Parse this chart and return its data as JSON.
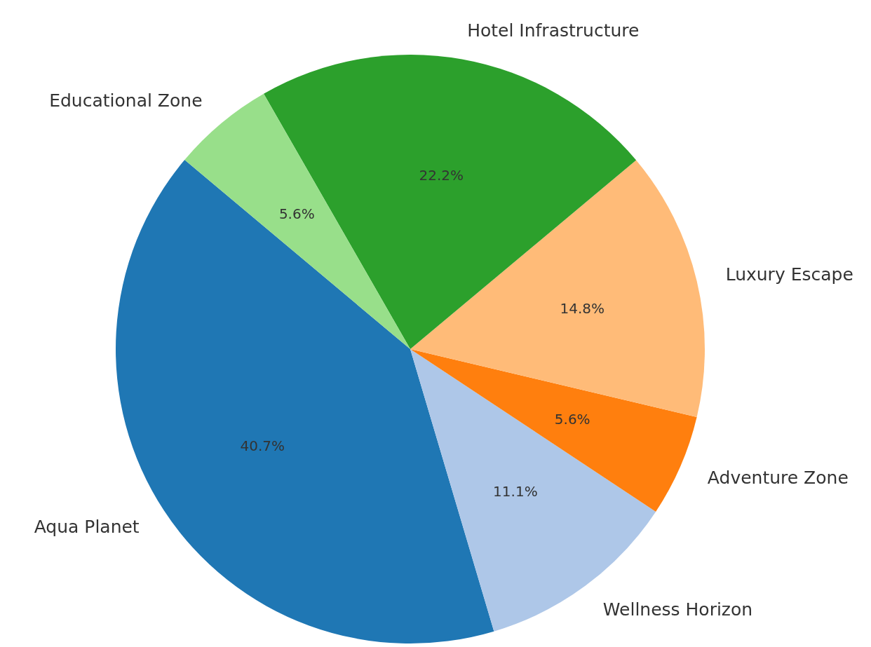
{
  "chart_data": {
    "type": "pie",
    "categories": [
      "Aqua Planet",
      "Wellness Horizon",
      "Adventure Zone",
      "Luxury Escape",
      "Hotel Infrastructure",
      "Educational Zone"
    ],
    "values": [
      40.7,
      11.1,
      5.6,
      14.8,
      22.2,
      5.6
    ],
    "colors": [
      "#1f77b4",
      "#aec7e8",
      "#ff7f0e",
      "#ffbb78",
      "#2ca02c",
      "#98df8a"
    ],
    "value_labels": [
      "40.7%",
      "11.1%",
      "5.6%",
      "14.8%",
      "22.2%",
      "5.6%"
    ],
    "legend": false
  }
}
